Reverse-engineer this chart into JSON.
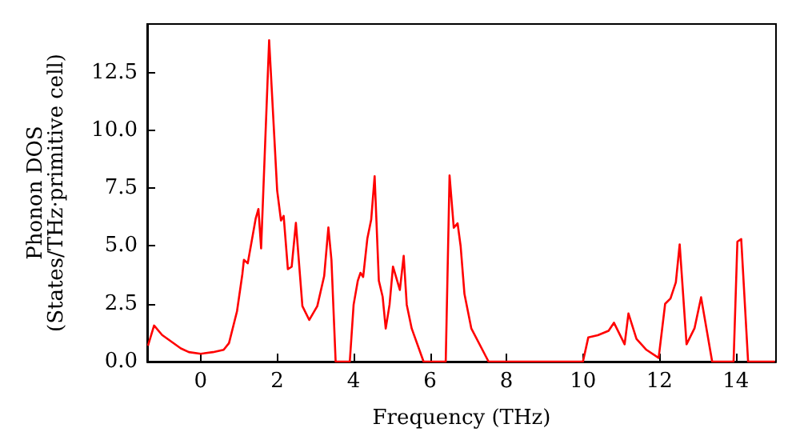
{
  "chart_data": {
    "type": "line",
    "xlabel": "Frequency (THz)",
    "ylabel": "Phonon DOS\n(States/THz·primitive cell)",
    "xlim": [
      -1.4,
      15.05
    ],
    "ylim": [
      0,
      14.6
    ],
    "xticks": [
      0,
      2,
      4,
      6,
      8,
      10,
      12,
      14
    ],
    "yticks": [
      {
        "value": 0,
        "label": "0.0"
      },
      {
        "value": 2.5,
        "label": "2.5"
      },
      {
        "value": 5,
        "label": "5.0"
      },
      {
        "value": 7.5,
        "label": "7.5"
      },
      {
        "value": 10,
        "label": "10.0"
      },
      {
        "value": 12.5,
        "label": "12.5"
      }
    ],
    "grid": false,
    "marker": "none",
    "line_style": "solid",
    "series": [
      {
        "color": "#ff0000",
        "x": [
          -1.38,
          -1.22,
          -1.01,
          -0.52,
          -0.31,
          0,
          0.32,
          0.6,
          0.74,
          0.95,
          1.09,
          1.13,
          1.23,
          1.44,
          1.51,
          1.58,
          1.79,
          2.0,
          2.1,
          2.17,
          2.28,
          2.38,
          2.49,
          2.66,
          2.84,
          3.05,
          3.23,
          3.34,
          3.42,
          3.53,
          3.9,
          4.0,
          4.11,
          4.18,
          4.25,
          4.36,
          4.46,
          4.55,
          4.66,
          4.76,
          4.84,
          4.94,
          5.03,
          5.21,
          5.31,
          5.39,
          5.52,
          5.83,
          6.41,
          6.51,
          6.62,
          6.72,
          6.8,
          6.9,
          7.08,
          7.53,
          10.0,
          10.14,
          10.39,
          10.67,
          10.81,
          11.09,
          11.19,
          11.4,
          11.66,
          11.98,
          12.15,
          12.29,
          12.43,
          12.53,
          12.71,
          12.92,
          13.09,
          13.38,
          13.94,
          14.04,
          14.14,
          14.32,
          15.02
        ],
        "values": [
          0.69,
          1.56,
          1.15,
          0.57,
          0.41,
          0.34,
          0.41,
          0.51,
          0.8,
          2.18,
          3.79,
          4.4,
          4.25,
          6.2,
          6.6,
          4.9,
          13.9,
          7.4,
          6.1,
          6.3,
          4.0,
          4.1,
          6.0,
          2.4,
          1.8,
          2.4,
          3.7,
          5.8,
          4.4,
          0,
          0,
          2.46,
          3.5,
          3.84,
          3.66,
          5.33,
          6.14,
          8.02,
          3.5,
          2.8,
          1.43,
          2.46,
          4.11,
          3.1,
          4.57,
          2.46,
          1.43,
          0,
          0,
          8.05,
          5.79,
          5.98,
          4.99,
          2.92,
          1.43,
          0,
          0,
          1.05,
          1.14,
          1.33,
          1.68,
          0.75,
          2.08,
          0.98,
          0.51,
          0.16,
          2.5,
          2.73,
          3.43,
          5.07,
          0.75,
          1.45,
          2.78,
          0,
          0,
          5.19,
          5.3,
          0,
          0
        ]
      }
    ]
  }
}
